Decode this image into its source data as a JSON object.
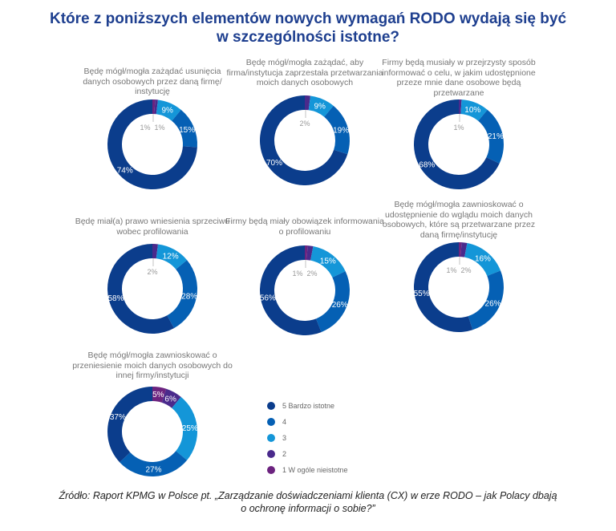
{
  "title_line1": "Które z poniższych elementów nowych wymagań RODO wydają się być",
  "title_line2": "w szczególności istotne?",
  "colors": {
    "5": "#0b3d8c",
    "4": "#0560b4",
    "3": "#1496d8",
    "2": "#4a2a8c",
    "1": "#6c237f"
  },
  "chart_data": [
    {
      "type": "pie",
      "title": "Będę mógł/mogła zażądać usunięcia danych osobowych przez daną firmę/ instytucję",
      "categories": [
        "1 W ogóle nieistotne",
        "2",
        "3",
        "4",
        "5 Bardzo istotne"
      ],
      "values": [
        1,
        1,
        9,
        15,
        74
      ]
    },
    {
      "type": "pie",
      "title": "Będę mógł/mogła zażądać, aby firma/instytucja zaprzestała przetwarzania moich danych osobowych",
      "categories": [
        "1 W ogóle nieistotne",
        "2",
        "3",
        "4",
        "5 Bardzo istotne"
      ],
      "values": [
        0,
        2,
        9,
        19,
        70
      ]
    },
    {
      "type": "pie",
      "title": "Firmy będą musiały w przejrzysty sposób informować o celu, w jakim udostępnione przeze mnie dane osobowe będą przetwarzane",
      "categories": [
        "1 W ogóle nieistotne",
        "2",
        "3",
        "4",
        "5 Bardzo istotne"
      ],
      "values": [
        0,
        1,
        10,
        21,
        68
      ]
    },
    {
      "type": "pie",
      "title": "Będę miał(a) prawo wniesienia sprzeciwu wobec profilowania",
      "categories": [
        "1 W ogóle nieistotne",
        "2",
        "3",
        "4",
        "5 Bardzo istotne"
      ],
      "values": [
        0,
        2,
        12,
        28,
        58
      ]
    },
    {
      "type": "pie",
      "title": "Firmy będą miały obowiązek informowania o profilowaniu",
      "categories": [
        "1 W ogóle nieistotne",
        "2",
        "3",
        "4",
        "5 Bardzo istotne"
      ],
      "values": [
        1,
        2,
        15,
        26,
        56
      ]
    },
    {
      "type": "pie",
      "title": "Będę mógł/mogła zawnioskować o udostępnienie do wglądu moich danych osobowych, które są przetwarzane przez daną firmę/instytucję",
      "categories": [
        "1 W ogóle nieistotne",
        "2",
        "3",
        "4",
        "5 Bardzo istotne"
      ],
      "values": [
        1,
        2,
        16,
        26,
        55
      ]
    },
    {
      "type": "pie",
      "title": "Będę mógł/mogła zawnioskować o przeniesienie moich danych osobowych do innej firmy/instytucji",
      "categories": [
        "1 W ogóle nieistotne",
        "2",
        "3",
        "4",
        "5 Bardzo istotne"
      ],
      "values": [
        5,
        6,
        25,
        27,
        37
      ]
    }
  ],
  "legend": [
    "5 Bardzo istotne",
    "4",
    "3",
    "2",
    "1 W ogóle nieistotne"
  ],
  "source_line1": "Źródło: Raport KPMG w Polsce pt. „Zarządzanie doświadczeniami klienta (CX) w erze RODO – jak Polacy dbają",
  "source_line2": "o ochronę informacji o sobie?”"
}
